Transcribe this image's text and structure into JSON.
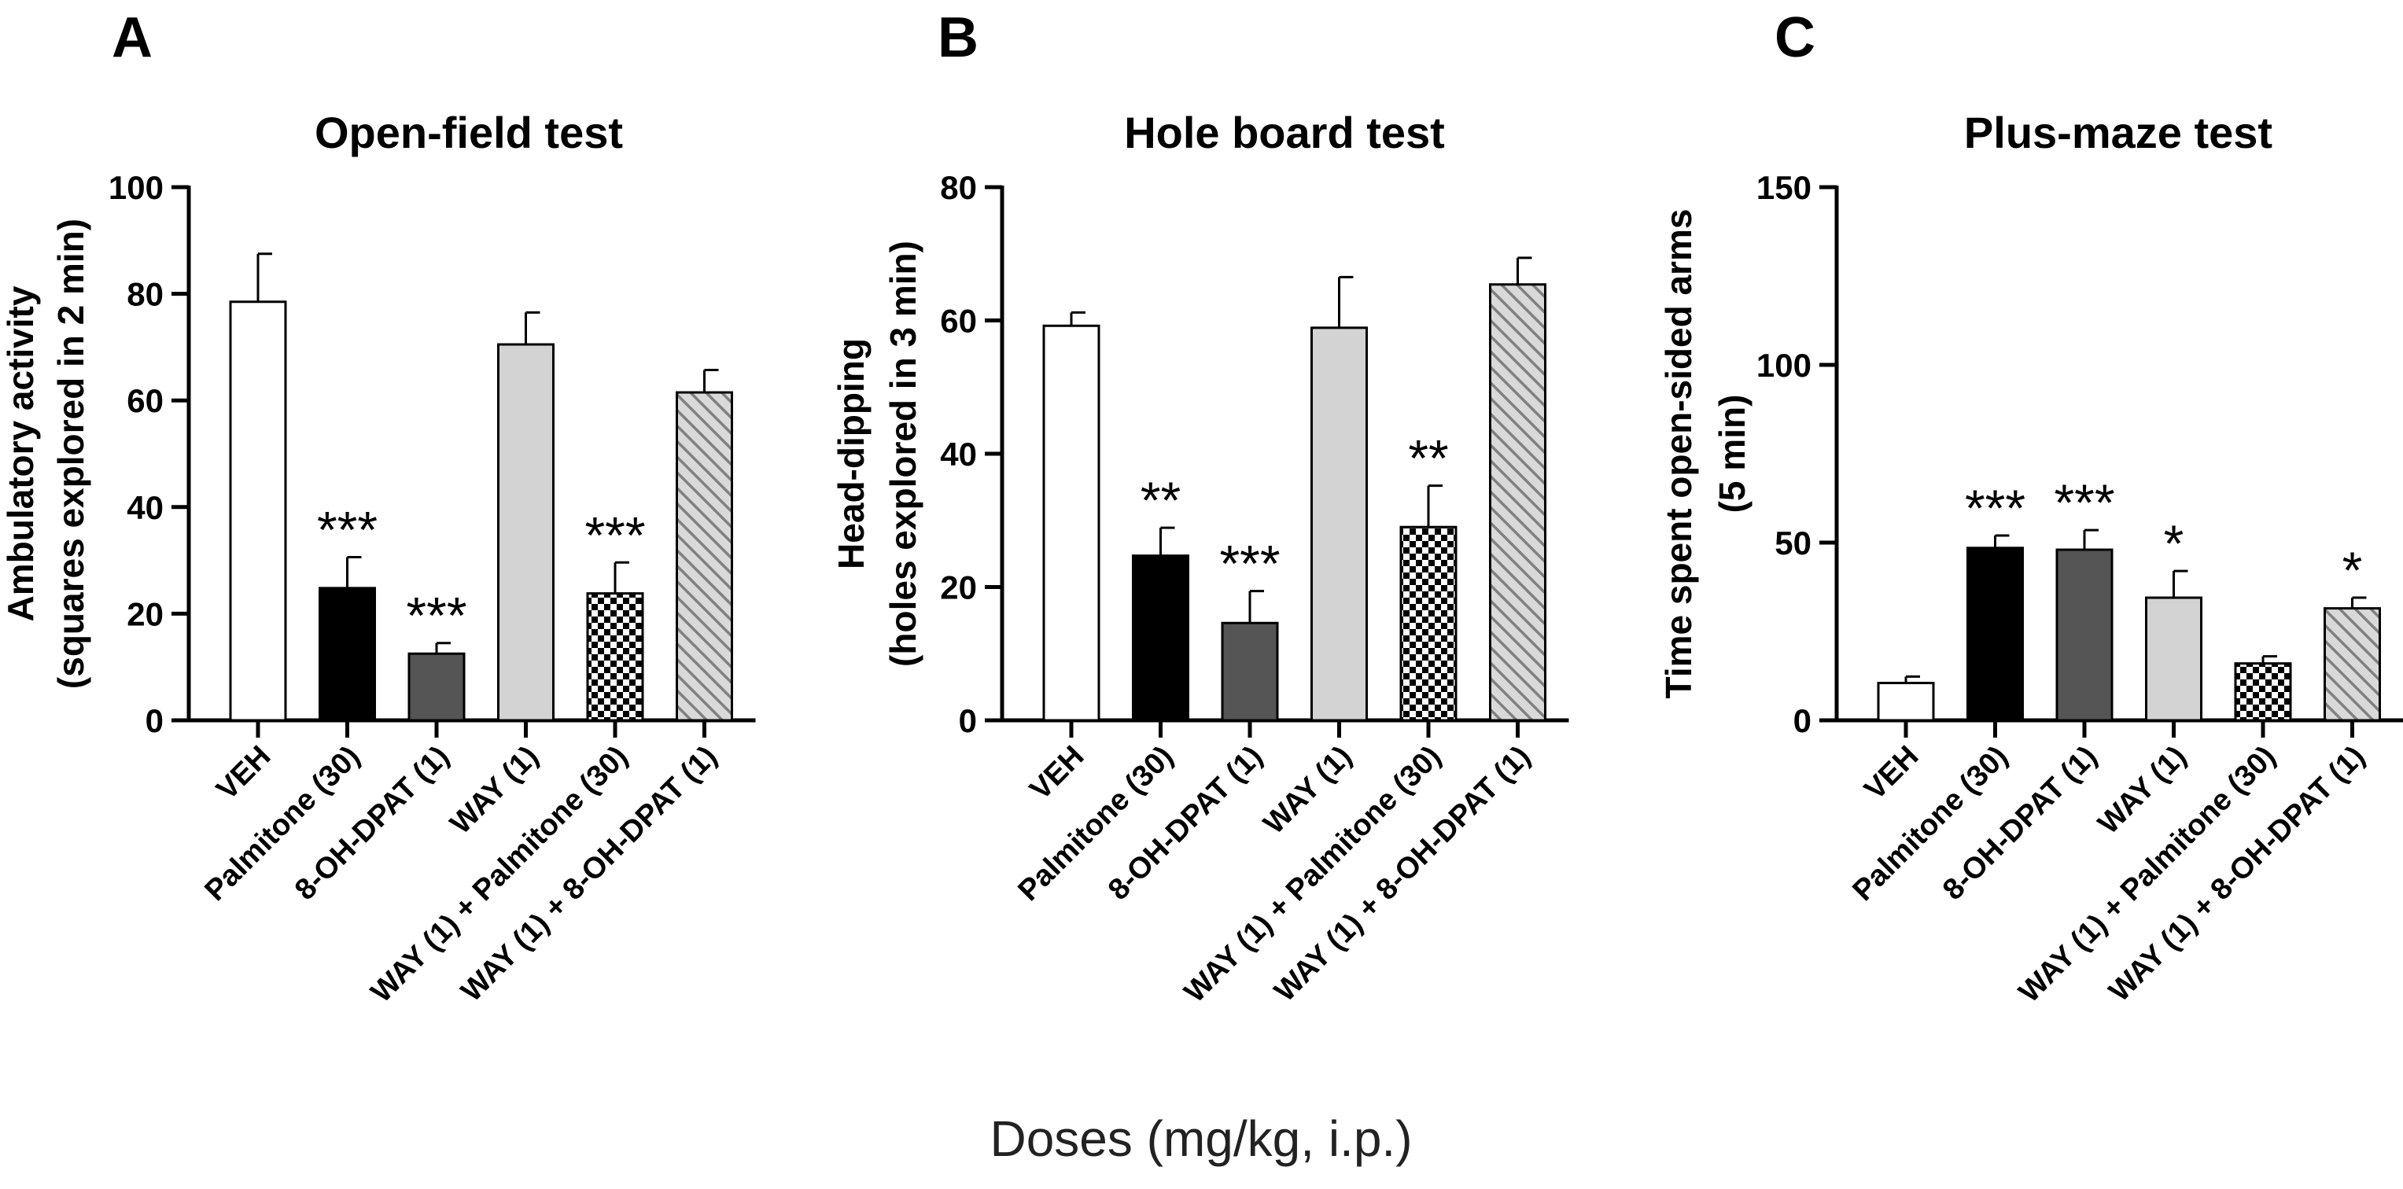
{
  "figure": {
    "shared_xlabel": "Doses (mg/kg, i.p.)",
    "categories": [
      "VEH",
      "Palmitone (30)",
      "8-OH-DPAT (1)",
      "WAY (1)",
      "WAY (1) + Palmitone (30)",
      "WAY (1) + 8-OH-DPAT (1)"
    ],
    "colors": {
      "axis": "#000000",
      "veh": "#ffffff",
      "palmitone": "#000000",
      "dpat": "#555555",
      "way": "#d3d3d3",
      "checker_light": "#ffffff",
      "checker_dark": "#000000",
      "hatch_bg": "#d9d9d9",
      "hatch_line": "#808080"
    }
  },
  "chart_data": [
    {
      "panel_letter": "A",
      "type": "bar",
      "title": "Open-field test",
      "ylabel": [
        "Ambulatory activity",
        "(squares explored in 2 min)"
      ],
      "xlabel": "Doses (mg/kg, i.p.)",
      "ylim": [
        0,
        100
      ],
      "yticks": [
        0,
        20,
        40,
        60,
        80,
        100
      ],
      "ytick_labels": [
        "0",
        "20",
        "40",
        "60",
        "80",
        "100"
      ],
      "categories": [
        "VEH",
        "Palmitone (30)",
        "8-OH-DPAT (1)",
        "WAY (1)",
        "WAY (1) + Palmitone (30)",
        "WAY (1) + 8-OH-DPAT (1)"
      ],
      "values": [
        78.5,
        24.8,
        12.5,
        70.5,
        23.8,
        61.5
      ],
      "errors": [
        9.0,
        5.8,
        2.0,
        6.0,
        5.8,
        4.2
      ],
      "significance": [
        "",
        "***",
        "***",
        "",
        "***",
        ""
      ]
    },
    {
      "panel_letter": "B",
      "type": "bar",
      "title": "Hole board test",
      "ylabel": [
        "Head-dipping",
        "(holes explored in 3 min)"
      ],
      "xlabel": "Doses (mg/kg, i.p.)",
      "ylim": [
        0,
        80
      ],
      "yticks": [
        0,
        20,
        40,
        60,
        80
      ],
      "ytick_labels": [
        "0",
        "20",
        "40",
        "60",
        "80"
      ],
      "categories": [
        "VEH",
        "Palmitone (30)",
        "8-OH-DPAT (1)",
        "WAY (1)",
        "WAY (1) + Palmitone (30)",
        "WAY (1) + 8-OH-DPAT (1)"
      ],
      "values": [
        59.2,
        24.7,
        14.6,
        58.9,
        29.0,
        65.4
      ],
      "errors": [
        2.0,
        4.2,
        4.8,
        7.6,
        6.2,
        4.0
      ],
      "significance": [
        "",
        "**",
        "***",
        "",
        "**",
        ""
      ]
    },
    {
      "panel_letter": "C",
      "type": "bar",
      "title": "Plus-maze test",
      "ylabel": [
        "Time spent open-sided arms",
        "(5 min)"
      ],
      "xlabel": "Doses (mg/kg, i.p.)",
      "ylim": [
        0,
        150
      ],
      "yticks": [
        0,
        50,
        100,
        150
      ],
      "ytick_labels": [
        "0",
        "50",
        "100",
        "150"
      ],
      "categories": [
        "VEH",
        "Palmitone (30)",
        "8-OH-DPAT (1)",
        "WAY (1)",
        "WAY (1) + Palmitone (30)",
        "WAY (1) + 8-OH-DPAT (1)"
      ],
      "values": [
        10.5,
        48.5,
        48.0,
        34.5,
        16.0,
        31.5
      ],
      "errors": [
        1.8,
        3.5,
        5.5,
        7.5,
        2.0,
        3.0
      ],
      "significance": [
        "",
        "***",
        "***",
        "*",
        "",
        "*"
      ]
    }
  ]
}
